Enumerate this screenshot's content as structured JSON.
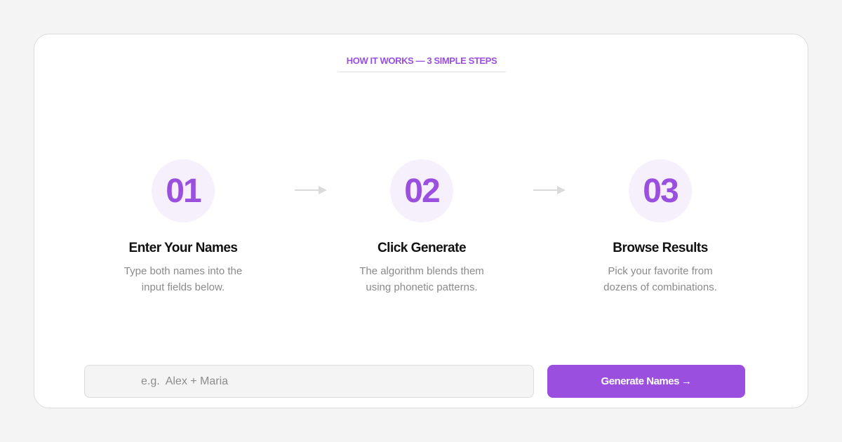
{
  "header": {
    "kicker": "HOW IT WORKS — 3 SIMPLE STEPS"
  },
  "steps": [
    {
      "number": "01",
      "title": "Enter Your Names",
      "desc": "Type both names into the input fields below."
    },
    {
      "number": "02",
      "title": "Click Generate",
      "desc": "The algorithm blends them using phonetic patterns."
    },
    {
      "number": "03",
      "title": "Browse Results",
      "desc": "Pick your favorite from dozens of combinations."
    }
  ],
  "form": {
    "placeholder": "e.g.  Alex + Maria",
    "value": "",
    "button_label": "Generate Names",
    "button_icon": "→"
  },
  "colors": {
    "accent": "#9a4fdf",
    "circle_bg": "#f6f0fd",
    "page_bg": "#f4f4f4"
  }
}
